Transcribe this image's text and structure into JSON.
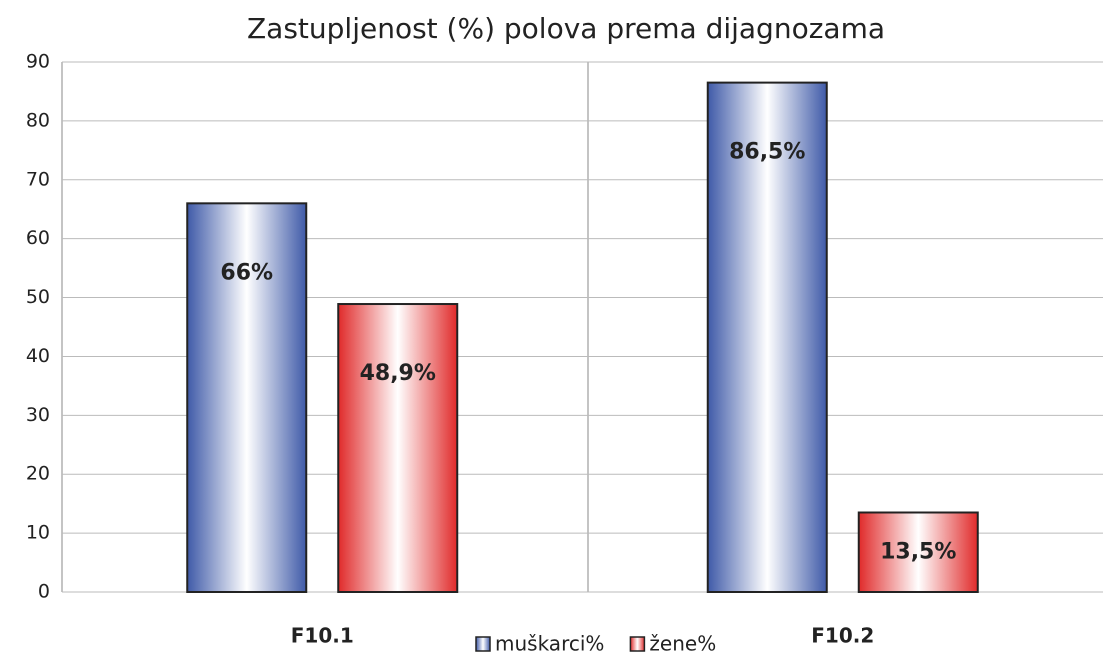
{
  "chart_data": {
    "type": "bar",
    "title": "Zastupljenost (%) polova prema dijagnozama",
    "categories": [
      "F10.1",
      "F10.2"
    ],
    "series": [
      {
        "name": "muškarci%",
        "color": "#3f5aa8",
        "values": [
          66,
          86.5
        ],
        "value_labels": [
          "66%",
          "86,5%"
        ]
      },
      {
        "name": "žene%",
        "color": "#e02a2a",
        "values": [
          48.9,
          13.5
        ],
        "value_labels": [
          "48,9%",
          "13,5%"
        ]
      }
    ],
    "ylim": [
      0,
      90
    ],
    "yticks": [
      0,
      10,
      20,
      30,
      40,
      50,
      60,
      70,
      80,
      90
    ],
    "grid": true,
    "legend": "bottom"
  }
}
